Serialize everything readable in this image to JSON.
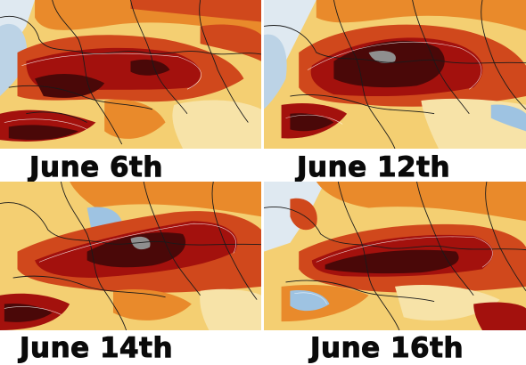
{
  "maps": [
    {
      "id": "p1",
      "caption": "June 6th"
    },
    {
      "id": "p2",
      "caption": "June 12th"
    },
    {
      "id": "p3",
      "caption": "June 14th"
    },
    {
      "id": "p4",
      "caption": "June 16th"
    }
  ],
  "colors": {
    "sea": "#bcd3e6",
    "sea_light": "#dfe9f1",
    "cool": "#9ec3e2",
    "mild": "#f7e3a8",
    "warm": "#f3c45f",
    "hot": "#e98a2b",
    "very_hot": "#d0481c",
    "extreme": "#a3110d",
    "record": "#4a0808",
    "peak": "#8f8f8f",
    "border": "#1a1a1a",
    "contour": "#ffffff"
  }
}
